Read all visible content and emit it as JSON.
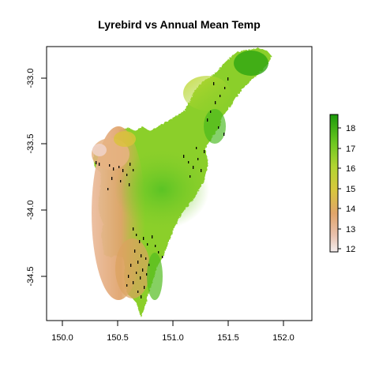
{
  "plot": {
    "title": "Lyrebird vs Annual Mean Temp"
  },
  "chart_data": {
    "type": "heatmap",
    "title": "Lyrebird vs Annual Mean Temp",
    "xlabel": "",
    "ylabel": "",
    "xlim": [
      149.88,
      152.28
    ],
    "ylim": [
      -34.85,
      -32.75
    ],
    "x_ticks": [
      "150.0",
      "150.5",
      "151.0",
      "151.5",
      "152.0"
    ],
    "y_ticks": [
      "-33.0",
      "-33.5",
      "-34.0",
      "-34.5"
    ],
    "legend": {
      "position": "right",
      "ticks": [
        "12",
        "13",
        "14",
        "15",
        "16",
        "17",
        "18"
      ],
      "range": [
        11.8,
        18.7
      ],
      "colors": [
        "#f2f2f2",
        "#eac6b4",
        "#e2a46e",
        "#d9c33a",
        "#b8d630",
        "#6dc91f",
        "#1e9c0a"
      ]
    },
    "points_color": "#000000"
  }
}
